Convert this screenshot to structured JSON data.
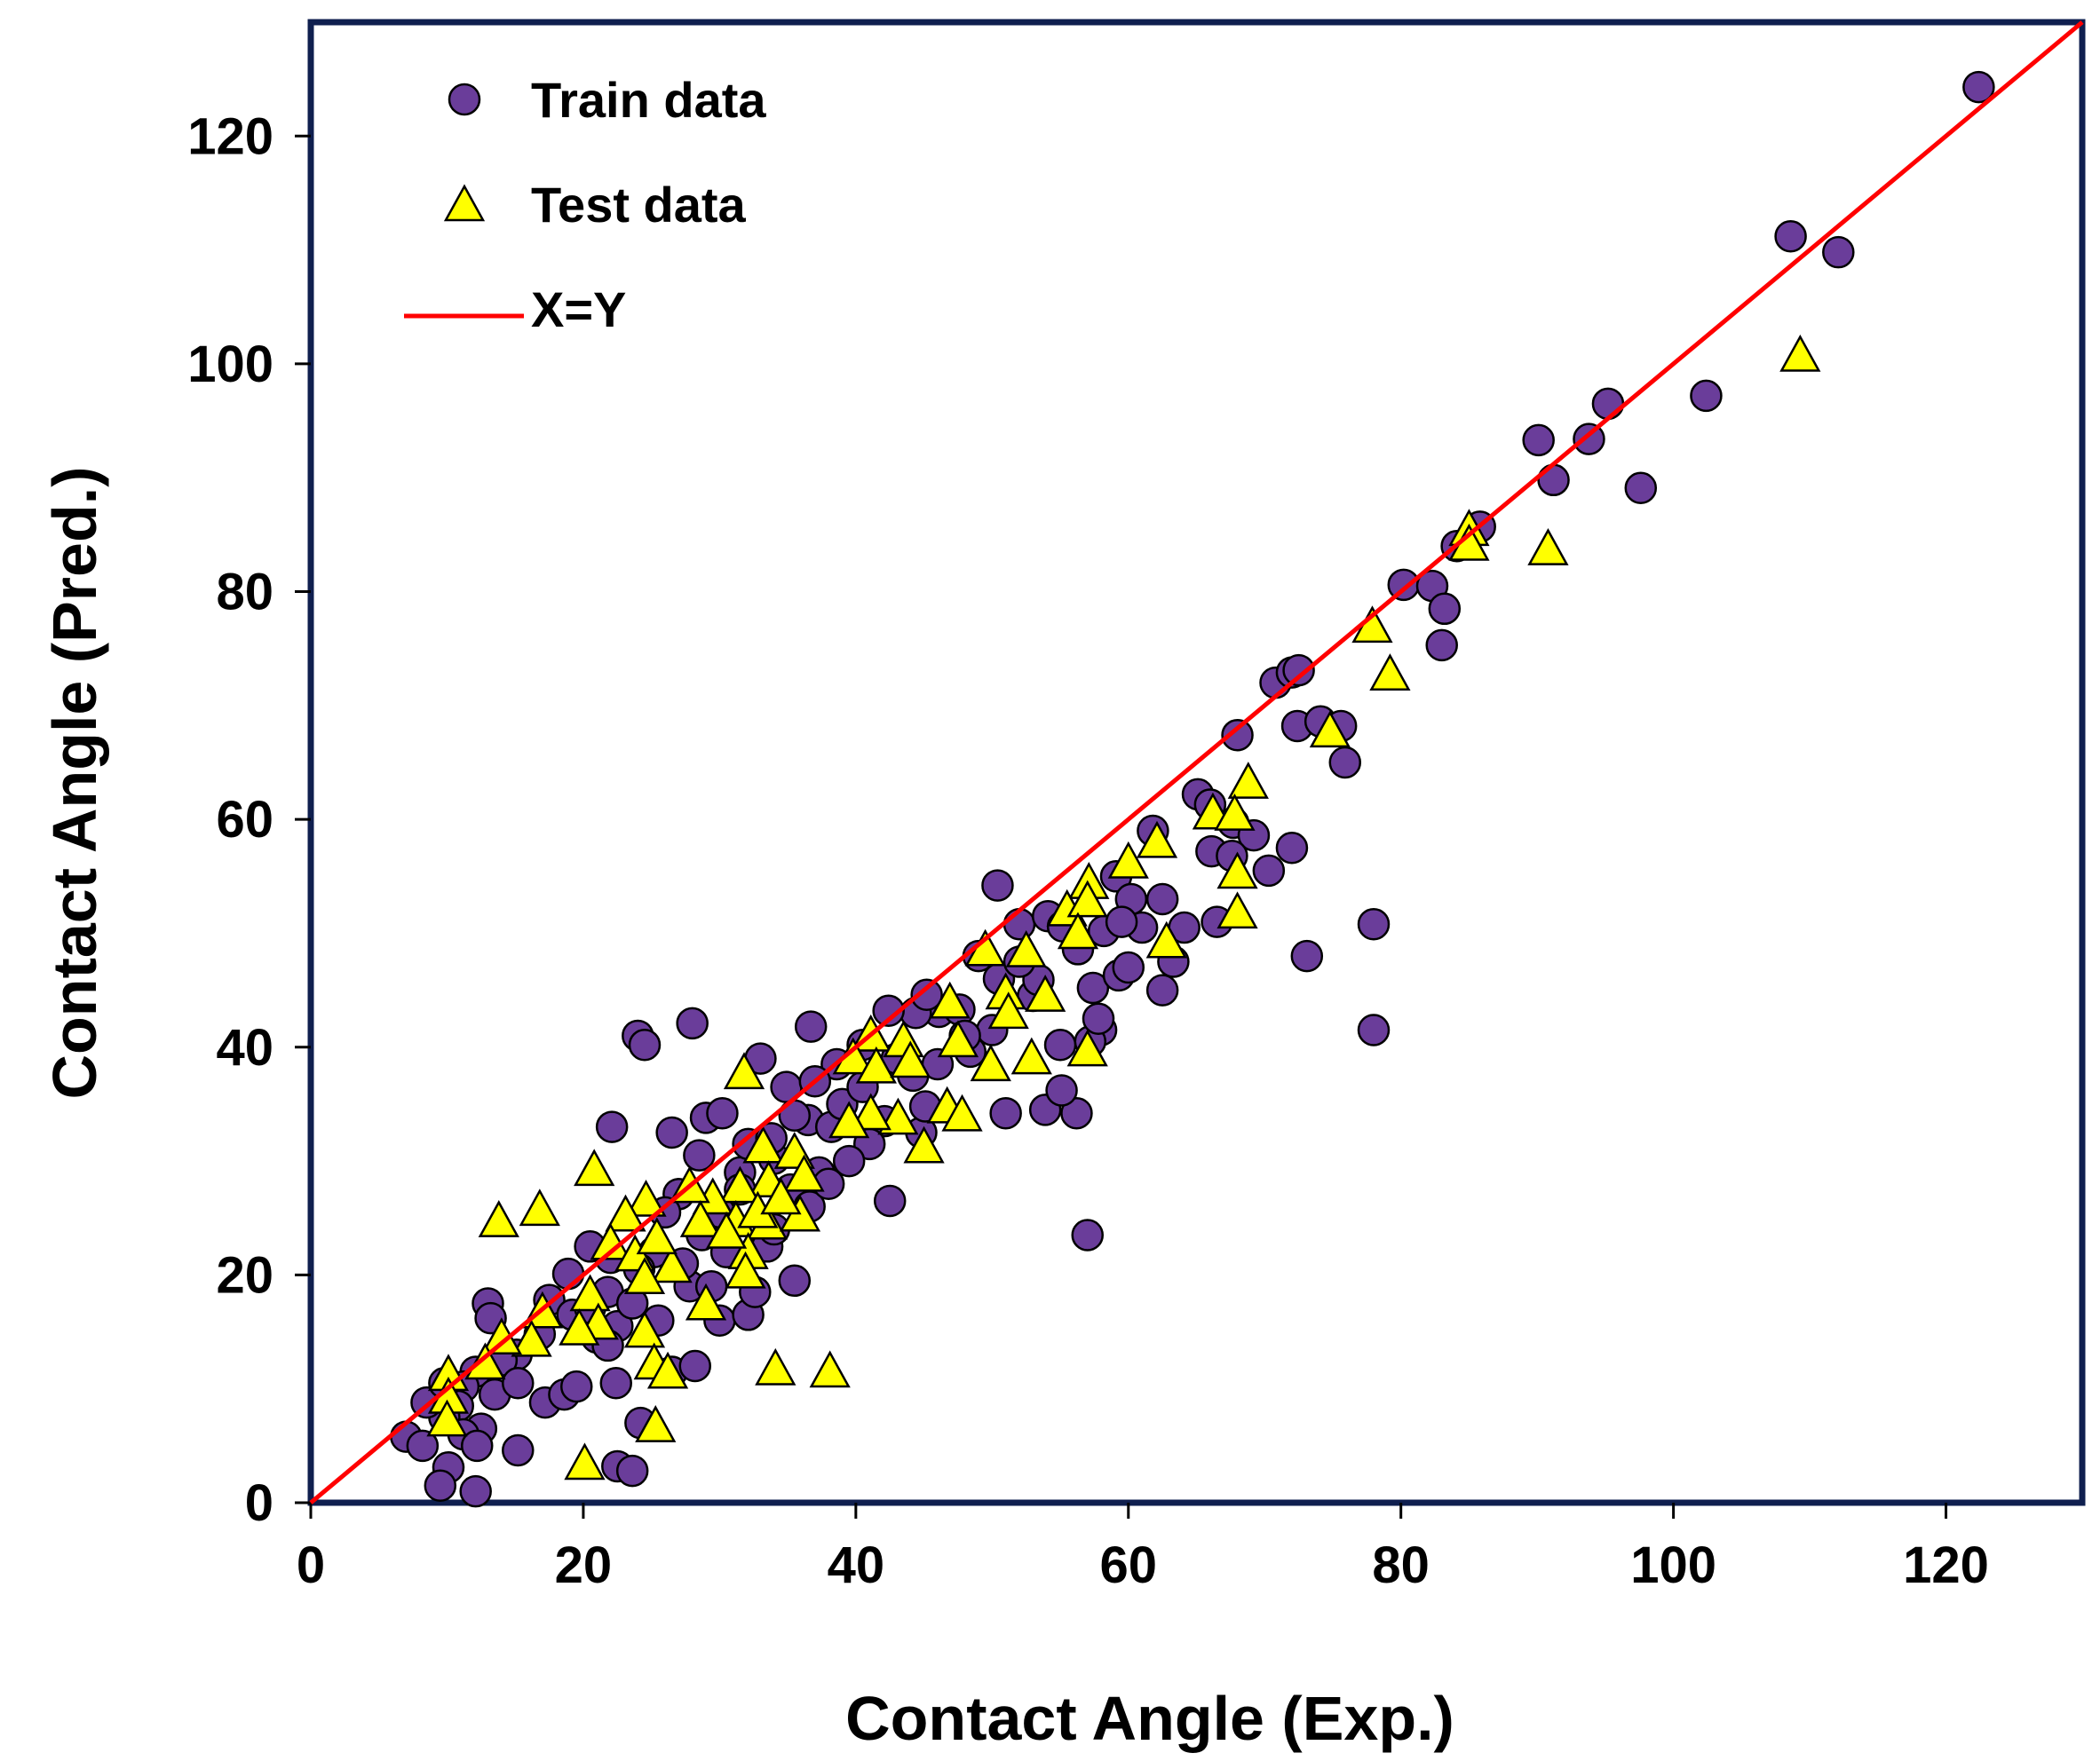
{
  "chart_data": {
    "type": "scatter",
    "xlabel": "Contact Angle (Exp.)",
    "ylabel": "Contact Angle (Pred.)",
    "xlim": [
      0,
      130
    ],
    "ylim": [
      0,
      130
    ],
    "xticks": [
      0,
      20,
      40,
      60,
      80,
      100,
      120
    ],
    "yticks": [
      0,
      20,
      40,
      60,
      80,
      100,
      120
    ],
    "xtick_labels": [
      "0",
      "20",
      "40",
      "60",
      "80",
      "100",
      "120"
    ],
    "ytick_labels": [
      "0",
      "20",
      "40",
      "60",
      "80",
      "100",
      "120"
    ],
    "grid": false,
    "legend_position": "top-left",
    "legend": [
      {
        "label": "Train data",
        "marker": "circle"
      },
      {
        "label": "Test data",
        "marker": "triangle"
      },
      {
        "label": "X=Y",
        "marker": "line"
      }
    ],
    "colors": {
      "train_fill": "#6a3d9a",
      "test_fill": "#ffff00",
      "line": "#ff0000",
      "frame": "#0f1f4f"
    },
    "reference_line": {
      "name": "X=Y",
      "from": [
        0,
        0
      ],
      "to": [
        130,
        130
      ]
    },
    "series": [
      {
        "name": "Train data",
        "marker": "circle",
        "points": [
          [
            122.4,
            124.3
          ],
          [
            108.6,
            111.2
          ],
          [
            112.1,
            109.8
          ],
          [
            95.2,
            96.5
          ],
          [
            102.4,
            97.2
          ],
          [
            90.1,
            93.3
          ],
          [
            93.8,
            93.4
          ],
          [
            91.2,
            89.8
          ],
          [
            97.6,
            89.1
          ],
          [
            85.8,
            85.7
          ],
          [
            84.1,
            84.0
          ],
          [
            80.2,
            80.6
          ],
          [
            82.3,
            80.5
          ],
          [
            83.2,
            78.5
          ],
          [
            83.0,
            75.3
          ],
          [
            70.8,
            72.0
          ],
          [
            72.0,
            72.9
          ],
          [
            72.5,
            73.1
          ],
          [
            68.0,
            67.4
          ],
          [
            72.4,
            68.2
          ],
          [
            74.1,
            68.6
          ],
          [
            75.6,
            68.2
          ],
          [
            75.9,
            65.0
          ],
          [
            65.1,
            62.2
          ],
          [
            66.0,
            61.3
          ],
          [
            67.7,
            59.7
          ],
          [
            69.2,
            58.6
          ],
          [
            72.0,
            57.5
          ],
          [
            66.1,
            57.2
          ],
          [
            67.6,
            56.8
          ],
          [
            61.8,
            59.0
          ],
          [
            62.5,
            53.0
          ],
          [
            64.1,
            50.5
          ],
          [
            66.5,
            51.0
          ],
          [
            70.3,
            55.5
          ],
          [
            73.1,
            48.0
          ],
          [
            78.0,
            50.8
          ],
          [
            78.0,
            41.5
          ],
          [
            57.0,
            23.5
          ],
          [
            50.4,
            54.2
          ],
          [
            59.1,
            55.0
          ],
          [
            60.2,
            53.0
          ],
          [
            58.2,
            50.2
          ],
          [
            56.3,
            48.6
          ],
          [
            57.4,
            45.2
          ],
          [
            59.3,
            46.3
          ],
          [
            62.5,
            45.0
          ],
          [
            58.0,
            41.5
          ],
          [
            57.2,
            40.5
          ],
          [
            55.0,
            40.2
          ],
          [
            53.0,
            44.5
          ],
          [
            49.0,
            48.0
          ],
          [
            46.1,
            43.1
          ],
          [
            44.4,
            43.0
          ],
          [
            42.4,
            43.2
          ],
          [
            45.2,
            44.6
          ],
          [
            47.6,
            43.3
          ],
          [
            50.0,
            41.5
          ],
          [
            48.4,
            39.6
          ],
          [
            53.4,
            45.9
          ],
          [
            52.0,
            50.8
          ],
          [
            54.1,
            51.5
          ],
          [
            55.2,
            50.6
          ],
          [
            51.0,
            34.2
          ],
          [
            53.9,
            34.5
          ],
          [
            56.2,
            34.2
          ],
          [
            55.1,
            36.2
          ],
          [
            36.7,
            41.8
          ],
          [
            34.9,
            36.5
          ],
          [
            36.5,
            33.6
          ],
          [
            38.2,
            33.0
          ],
          [
            39.0,
            35.0
          ],
          [
            40.5,
            36.5
          ],
          [
            42.1,
            33.5
          ],
          [
            41.0,
            31.5
          ],
          [
            37.3,
            29.0
          ],
          [
            35.2,
            27.5
          ],
          [
            42.5,
            26.5
          ],
          [
            44.8,
            32.5
          ],
          [
            45.1,
            34.8
          ],
          [
            39.5,
            30.0
          ],
          [
            24.0,
            41.0
          ],
          [
            24.5,
            40.2
          ],
          [
            28.0,
            42.1
          ],
          [
            22.1,
            33.0
          ],
          [
            26.5,
            32.5
          ],
          [
            29.0,
            33.8
          ],
          [
            30.2,
            34.2
          ],
          [
            31.5,
            29.0
          ],
          [
            29.2,
            24.8
          ],
          [
            33.0,
            39.0
          ],
          [
            32.1,
            31.5
          ],
          [
            34.0,
            30.2
          ],
          [
            28.5,
            30.5
          ],
          [
            27.0,
            27.1
          ],
          [
            26.0,
            25.5
          ],
          [
            25.2,
            22.0
          ],
          [
            24.1,
            20.5
          ],
          [
            22.0,
            21.5
          ],
          [
            20.5,
            22.5
          ],
          [
            21.8,
            18.5
          ],
          [
            18.9,
            20.1
          ],
          [
            17.5,
            17.8
          ],
          [
            19.2,
            16.5
          ],
          [
            20.5,
            17.1
          ],
          [
            22.5,
            15.5
          ],
          [
            21.0,
            14.5
          ],
          [
            16.8,
            14.8
          ],
          [
            15.1,
            13.0
          ],
          [
            14.0,
            12.5
          ],
          [
            13.0,
            17.5
          ],
          [
            13.2,
            16.2
          ],
          [
            12.1,
            11.5
          ],
          [
            11.2,
            10.2
          ],
          [
            13.5,
            9.5
          ],
          [
            15.2,
            10.5
          ],
          [
            17.2,
            8.8
          ],
          [
            18.6,
            9.5
          ],
          [
            19.5,
            10.2
          ],
          [
            22.4,
            10.5
          ],
          [
            21.8,
            13.8
          ],
          [
            24.2,
            7.0
          ],
          [
            26.5,
            11.5
          ],
          [
            28.2,
            12.0
          ],
          [
            30.0,
            16.0
          ],
          [
            32.1,
            16.5
          ],
          [
            33.5,
            22.5
          ],
          [
            35.5,
            19.5
          ],
          [
            30.5,
            22.0
          ],
          [
            27.8,
            19.0
          ],
          [
            25.5,
            16.0
          ],
          [
            23.6,
            17.5
          ],
          [
            10.8,
            8.5
          ],
          [
            9.8,
            7.5
          ],
          [
            12.5,
            6.5
          ],
          [
            11.2,
            6.0
          ],
          [
            7.0,
            5.8
          ],
          [
            8.2,
            5.0
          ],
          [
            10.1,
            3.1
          ],
          [
            9.5,
            1.5
          ],
          [
            12.1,
            1.0
          ],
          [
            15.2,
            4.6
          ],
          [
            22.5,
            3.2
          ],
          [
            23.6,
            2.8
          ],
          [
            12.2,
            5.0
          ],
          [
            8.5,
            8.8
          ],
          [
            9.8,
            10.5
          ],
          [
            38.6,
            38.5
          ],
          [
            40.5,
            40.2
          ],
          [
            43.0,
            39.0
          ],
          [
            44.2,
            37.5
          ],
          [
            37.0,
            37.0
          ],
          [
            35.5,
            34.0
          ],
          [
            33.8,
            32.0
          ],
          [
            31.5,
            27.5
          ],
          [
            30.0,
            25.5
          ],
          [
            28.7,
            23.5
          ],
          [
            27.3,
            21.0
          ],
          [
            29.4,
            19.0
          ],
          [
            32.6,
            18.5
          ],
          [
            34.0,
            24.0
          ],
          [
            36.6,
            26.0
          ],
          [
            38.0,
            28.0
          ],
          [
            46.0,
            38.5
          ],
          [
            48.0,
            41.0
          ],
          [
            50.5,
            46.0
          ],
          [
            52.0,
            47.5
          ],
          [
            57.8,
            42.5
          ],
          [
            60.0,
            47.0
          ],
          [
            63.3,
            47.5
          ],
          [
            61.0,
            50.5
          ],
          [
            59.5,
            51.0
          ]
        ]
      },
      {
        "name": "Test data",
        "marker": "triangle",
        "points": [
          [
            109.3,
            100.5
          ],
          [
            85.0,
            85.2
          ],
          [
            85.0,
            83.9
          ],
          [
            90.8,
            83.5
          ],
          [
            77.9,
            76.7
          ],
          [
            79.2,
            72.5
          ],
          [
            74.8,
            67.5
          ],
          [
            68.8,
            63.0
          ],
          [
            66.2,
            60.3
          ],
          [
            67.8,
            60.2
          ],
          [
            62.1,
            57.8
          ],
          [
            60.0,
            56.0
          ],
          [
            68.0,
            55.1
          ],
          [
            68.0,
            51.6
          ],
          [
            62.8,
            49.0
          ],
          [
            57.1,
            54.2
          ],
          [
            55.5,
            51.8
          ],
          [
            57.0,
            52.6
          ],
          [
            56.3,
            49.8
          ],
          [
            52.5,
            48.2
          ],
          [
            49.5,
            48.3
          ],
          [
            51.0,
            44.5
          ],
          [
            51.2,
            42.8
          ],
          [
            53.9,
            44.3
          ],
          [
            46.9,
            43.7
          ],
          [
            52.9,
            38.8
          ],
          [
            49.9,
            38.2
          ],
          [
            57.0,
            39.5
          ],
          [
            47.5,
            40.3
          ],
          [
            41.1,
            40.8
          ],
          [
            43.5,
            40.3
          ],
          [
            39.8,
            38.8
          ],
          [
            41.5,
            38.0
          ],
          [
            44.0,
            38.5
          ],
          [
            46.7,
            34.5
          ],
          [
            47.8,
            33.8
          ],
          [
            45.0,
            31.0
          ],
          [
            43.1,
            33.5
          ],
          [
            41.1,
            33.9
          ],
          [
            39.5,
            33.2
          ],
          [
            31.8,
            37.5
          ],
          [
            33.2,
            31.0
          ],
          [
            35.5,
            30.5
          ],
          [
            36.2,
            28.5
          ],
          [
            33.6,
            28.0
          ],
          [
            31.5,
            27.5
          ],
          [
            29.5,
            26.5
          ],
          [
            27.8,
            27.5
          ],
          [
            28.6,
            24.5
          ],
          [
            31.2,
            24.5
          ],
          [
            33.5,
            24.3
          ],
          [
            35.9,
            25.0
          ],
          [
            32.1,
            21.7
          ],
          [
            31.9,
            20.0
          ],
          [
            29.0,
            17.2
          ],
          [
            26.5,
            20.5
          ],
          [
            24.6,
            26.3
          ],
          [
            23.1,
            25.0
          ],
          [
            22.0,
            22.5
          ],
          [
            23.8,
            21.5
          ],
          [
            24.5,
            19.5
          ],
          [
            25.4,
            23.0
          ],
          [
            20.8,
            29.0
          ],
          [
            16.8,
            25.5
          ],
          [
            13.8,
            24.5
          ],
          [
            20.5,
            18.0
          ],
          [
            21.1,
            15.5
          ],
          [
            19.7,
            15.0
          ],
          [
            17.0,
            16.5
          ],
          [
            16.2,
            14.0
          ],
          [
            14.0,
            14.2
          ],
          [
            12.8,
            12.0
          ],
          [
            10.1,
            11.0
          ],
          [
            10.1,
            9.0
          ],
          [
            10.0,
            7.0
          ],
          [
            24.5,
            14.8
          ],
          [
            25.2,
            12.0
          ],
          [
            26.2,
            11.2
          ],
          [
            25.3,
            6.5
          ],
          [
            20.1,
            3.2
          ],
          [
            34.1,
            11.5
          ],
          [
            38.1,
            11.3
          ],
          [
            30.5,
            23.5
          ],
          [
            32.8,
            25.3
          ],
          [
            34.5,
            26.5
          ]
        ]
      }
    ]
  }
}
